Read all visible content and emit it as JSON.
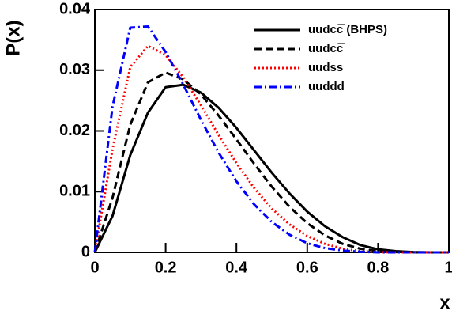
{
  "chart_data": {
    "type": "line",
    "y_label": "P(x)",
    "x_label": "x",
    "x": [
      0,
      0.05,
      0.1,
      0.15,
      0.2,
      0.25,
      0.3,
      0.35,
      0.4,
      0.45,
      0.5,
      0.55,
      0.6,
      0.65,
      0.7,
      0.75,
      0.8,
      0.85,
      0.9,
      0.95,
      1
    ],
    "series": [
      {
        "name": "uudcc̅ (BHPS)",
        "color": "#000000",
        "style": "solid",
        "values": [
          0,
          0.006,
          0.016,
          0.023,
          0.0272,
          0.0276,
          0.0263,
          0.0238,
          0.0205,
          0.0168,
          0.0131,
          0.0097,
          0.0067,
          0.0043,
          0.0025,
          0.0012,
          0.0005,
          0.0002,
          5e-05,
          0,
          0
        ]
      },
      {
        "name": "uudcc̅",
        "color": "#000000",
        "style": "dashed",
        "values": [
          0,
          0.009,
          0.021,
          0.028,
          0.0296,
          0.0285,
          0.026,
          0.0225,
          0.0186,
          0.0146,
          0.0108,
          0.0075,
          0.0048,
          0.0028,
          0.0014,
          0.0006,
          0.0002,
          5e-05,
          0,
          0,
          0
        ]
      },
      {
        "name": "uudss̅",
        "color": "#ff0000",
        "style": "dotted",
        "values": [
          0,
          0.017,
          0.0305,
          0.034,
          0.0325,
          0.0288,
          0.0242,
          0.0193,
          0.0147,
          0.0106,
          0.0072,
          0.0046,
          0.0027,
          0.0014,
          0.0006,
          0.0002,
          5e-05,
          0,
          0,
          0,
          0
        ]
      },
      {
        "name": "uuddd̅",
        "color": "#0000ff",
        "style": "dashdot",
        "values": [
          0,
          0.024,
          0.037,
          0.0372,
          0.033,
          0.0276,
          0.0218,
          0.0164,
          0.0117,
          0.0079,
          0.005,
          0.0029,
          0.0015,
          0.0007,
          0.0003,
          0.0001,
          0,
          0,
          0,
          0,
          0
        ]
      }
    ],
    "xlim": [
      0,
      1
    ],
    "xticks": [
      0,
      0.2,
      0.4,
      0.6,
      0.8,
      1
    ],
    "ylim": [
      0,
      0.04
    ],
    "yticks": [
      0,
      0.01,
      0.02,
      0.03,
      0.04
    ],
    "legend": "upper-right"
  }
}
